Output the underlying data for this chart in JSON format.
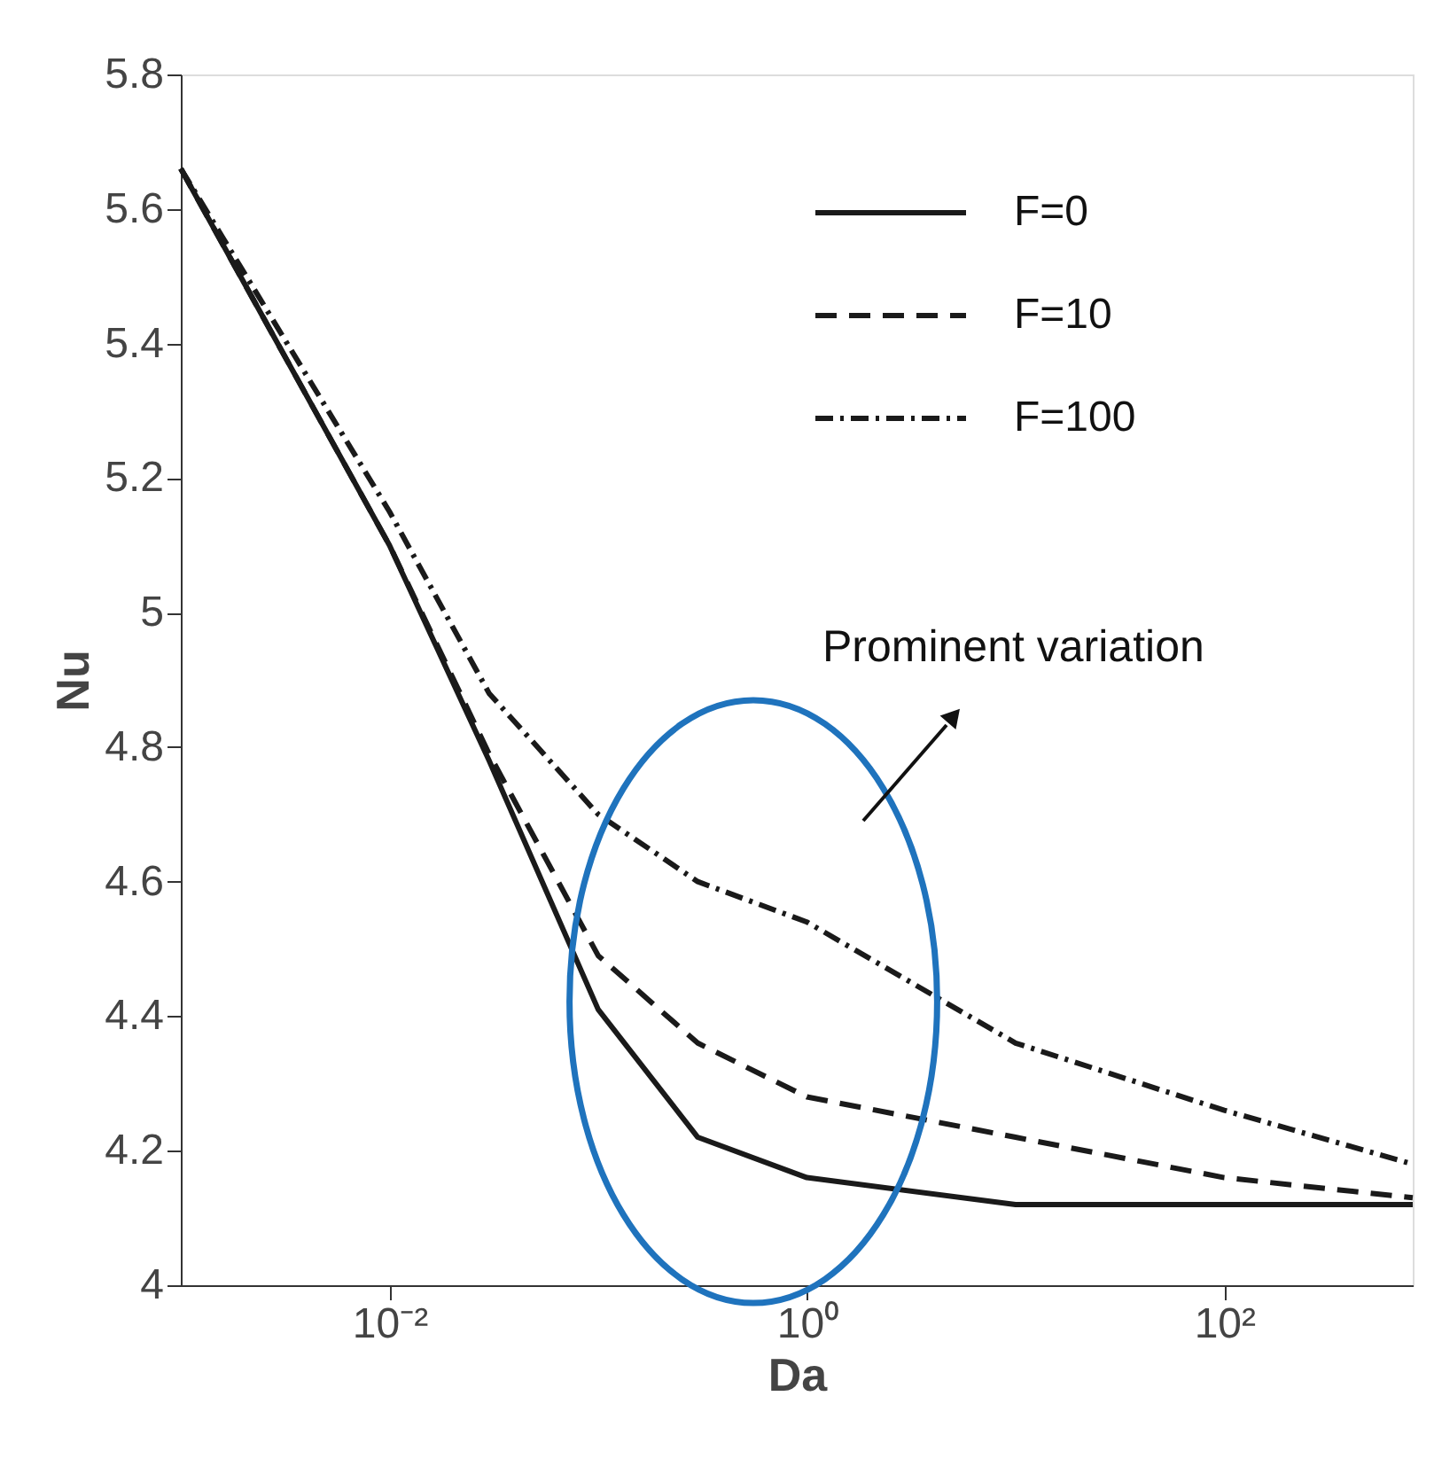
{
  "chart_data": {
    "type": "line",
    "xlabel": "Da",
    "ylabel": "Nu",
    "log": "x",
    "xlim": [
      0.001,
      800
    ],
    "ylim": [
      4,
      5.8
    ],
    "xticks": [
      {
        "value": 0.01,
        "label": "10⁻²"
      },
      {
        "value": 1,
        "label": "10⁰"
      },
      {
        "value": 100,
        "label": "10²"
      }
    ],
    "yticks": [
      4,
      4.2,
      4.4,
      4.6,
      4.8,
      5,
      5.2,
      5.4,
      5.6,
      5.8
    ],
    "grid": false,
    "legend": "top right",
    "marker": "none",
    "annotations": [
      "Prominent variation"
    ],
    "series": [
      {
        "name": "F=0",
        "color": "#1a1a1a",
        "line_style": "solid",
        "x": [
          0.001,
          0.01,
          0.03,
          0.1,
          0.3,
          1,
          10,
          100,
          800
        ],
        "values": [
          5.66,
          5.1,
          4.78,
          4.41,
          4.22,
          4.16,
          4.12,
          4.12,
          4.12
        ]
      },
      {
        "name": "F=10",
        "color": "#1a1a1a",
        "line_style": "dashed",
        "x": [
          0.001,
          0.01,
          0.03,
          0.1,
          0.3,
          1,
          10,
          100,
          800
        ],
        "values": [
          5.66,
          5.1,
          4.79,
          4.49,
          4.36,
          4.28,
          4.22,
          4.16,
          4.13
        ]
      },
      {
        "name": "F=100",
        "color": "#1a1a1a",
        "line_style": "dashdot",
        "x": [
          0.001,
          0.01,
          0.03,
          0.1,
          0.3,
          1,
          10,
          100,
          800
        ],
        "values": [
          5.66,
          5.15,
          4.88,
          4.7,
          4.6,
          4.54,
          4.36,
          4.26,
          4.18
        ]
      }
    ]
  }
}
